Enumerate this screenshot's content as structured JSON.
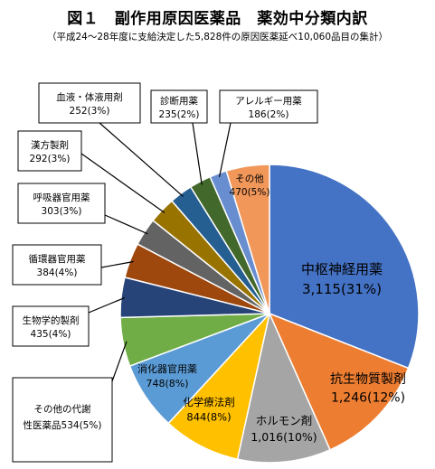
{
  "title": "図１　副作用原因医薬品　薬効中分類内訳",
  "subtitle": "（平成24～28年度に支給決定した5,828件の原因医薬延べ10,060品目の集計）",
  "chart_data": {
    "type": "pie",
    "total": 10060,
    "slices": [
      {
        "name": "中枢神経用薬",
        "value_label": "3,115(31%)",
        "value": 3115,
        "color": "#4472C4"
      },
      {
        "name": "抗生物質製剤",
        "value_label": "1,246(12%)",
        "value": 1246,
        "color": "#ED7D31"
      },
      {
        "name": "ホルモン剤",
        "value_label": "1,016(10%)",
        "value": 1016,
        "color": "#A5A5A5"
      },
      {
        "name": "化学療法剤",
        "value_label": "844(8%)",
        "value": 844,
        "color": "#FFC000"
      },
      {
        "name": "消化器官用薬",
        "value_label": "748(8%)",
        "value": 748,
        "color": "#5B9BD5"
      },
      {
        "name": "その他の代謝性医薬品",
        "value_label": "534(5%)",
        "value": 534,
        "color": "#70AD47"
      },
      {
        "name": "生物学的製剤",
        "value_label": "435(4%)",
        "value": 435,
        "color": "#264478"
      },
      {
        "name": "循環器官用薬",
        "value_label": "384(4%)",
        "value": 384,
        "color": "#9E480E"
      },
      {
        "name": "呼吸器官用薬",
        "value_label": "303(3%)",
        "value": 303,
        "color": "#636363"
      },
      {
        "name": "漢方製剤",
        "value_label": "292(3%)",
        "value": 292,
        "color": "#997300"
      },
      {
        "name": "血液・体液用剤",
        "value_label": "252(3%)",
        "value": 252,
        "color": "#255E91"
      },
      {
        "name": "診断用薬",
        "value_label": "235(2%)",
        "value": 235,
        "color": "#43682B"
      },
      {
        "name": "アレルギー用薬",
        "value_label": "186(2%)",
        "value": 186,
        "color": "#698ED0"
      },
      {
        "name": "その他",
        "value_label": "470(5%)",
        "value": 470,
        "color": "#F1975A"
      }
    ]
  }
}
